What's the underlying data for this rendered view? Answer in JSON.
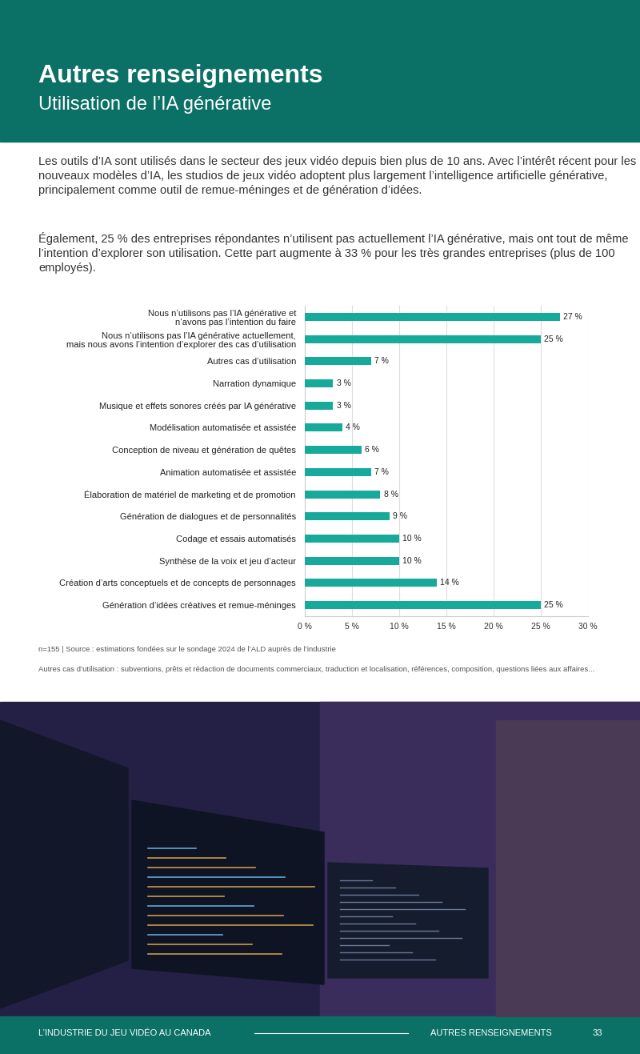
{
  "header": {
    "title": "Autres renseignements",
    "subtitle": "Utilisation de l’IA générative"
  },
  "body": {
    "paragraphs": [
      "Les outils d’IA sont utilisés dans le secteur des jeux vidéo depuis bien plus de 10 ans. Avec l’intérêt récent pour les nouveaux modèles d’IA, les studios de jeux vidéo adoptent plus largement l’intelligence artificielle générative, principalement comme outil de remue-méninges et de génération d’idées.",
      "Également, 25 % des entreprises répondantes n’utilisent pas actuellement l’IA générative, mais ont tout de même l’intention d’explorer son utilisation. Cette part augmente à 33 % pour les très grandes entreprises (plus de 100 employés)."
    ]
  },
  "chart_data": {
    "type": "bar",
    "orientation": "horizontal",
    "categories": [
      "Nous n’utilisons pas l’IA générative et\nn’avons pas l’intention du faire",
      "Nous n’utilisons pas l’IA générative actuellement,\nmais nous avons l’intention d’explorer des cas d’utilisation",
      "Autres cas d’utilisation",
      "Narration dynamique",
      "Musique et effets sonores créés par IA générative",
      "Modélisation automatisée et assistée",
      "Conception de niveau et génération de quêtes",
      "Animation automatisée et assistée",
      "Élaboration de matériel de marketing et de promotion",
      "Génération de dialogues et de personnalités",
      "Codage et essais automatisés",
      "Synthèse de la voix et jeu d’acteur",
      "Création d’arts conceptuels et de concepts de personnages",
      "Génération d’idées créatives et remue-méninges"
    ],
    "values": [
      27,
      25,
      7,
      3,
      3,
      4,
      6,
      7,
      8,
      9,
      10,
      10,
      14,
      25
    ],
    "value_labels": [
      "27 %",
      "25 %",
      "7 %",
      "3 %",
      "3 %",
      "4 %",
      "6 %",
      "7 %",
      "8 %",
      "9 %",
      "10 %",
      "10 %",
      "14 %",
      "25 %"
    ],
    "color": "#17a99a",
    "xlim": [
      0,
      30
    ],
    "xticks": [
      {
        "value": 0,
        "label": "0 %"
      },
      {
        "value": 5,
        "label": "5 %"
      },
      {
        "value": 10,
        "label": "10 %"
      },
      {
        "value": 15,
        "label": "15 %"
      },
      {
        "value": 20,
        "label": "20 %"
      },
      {
        "value": 25,
        "label": "25 %"
      },
      {
        "value": 30,
        "label": "30 %"
      }
    ],
    "grid": true,
    "data_labels": true
  },
  "notes": [
    "n=155 | Source : estimations fondées sur le sondage 2024 de l’ALD auprès de l’industrie",
    "Autres cas d’utilisation : subventions, prêts et rédaction de documents commerciaux, traduction et localisation, références, composition, questions liées aux affaires..."
  ],
  "footer": {
    "left": "L’INDUSTRIE DU JEU VIDÉO AU CANADA",
    "right": "AUTRES RENSEIGNEMENTS",
    "page": "33"
  }
}
